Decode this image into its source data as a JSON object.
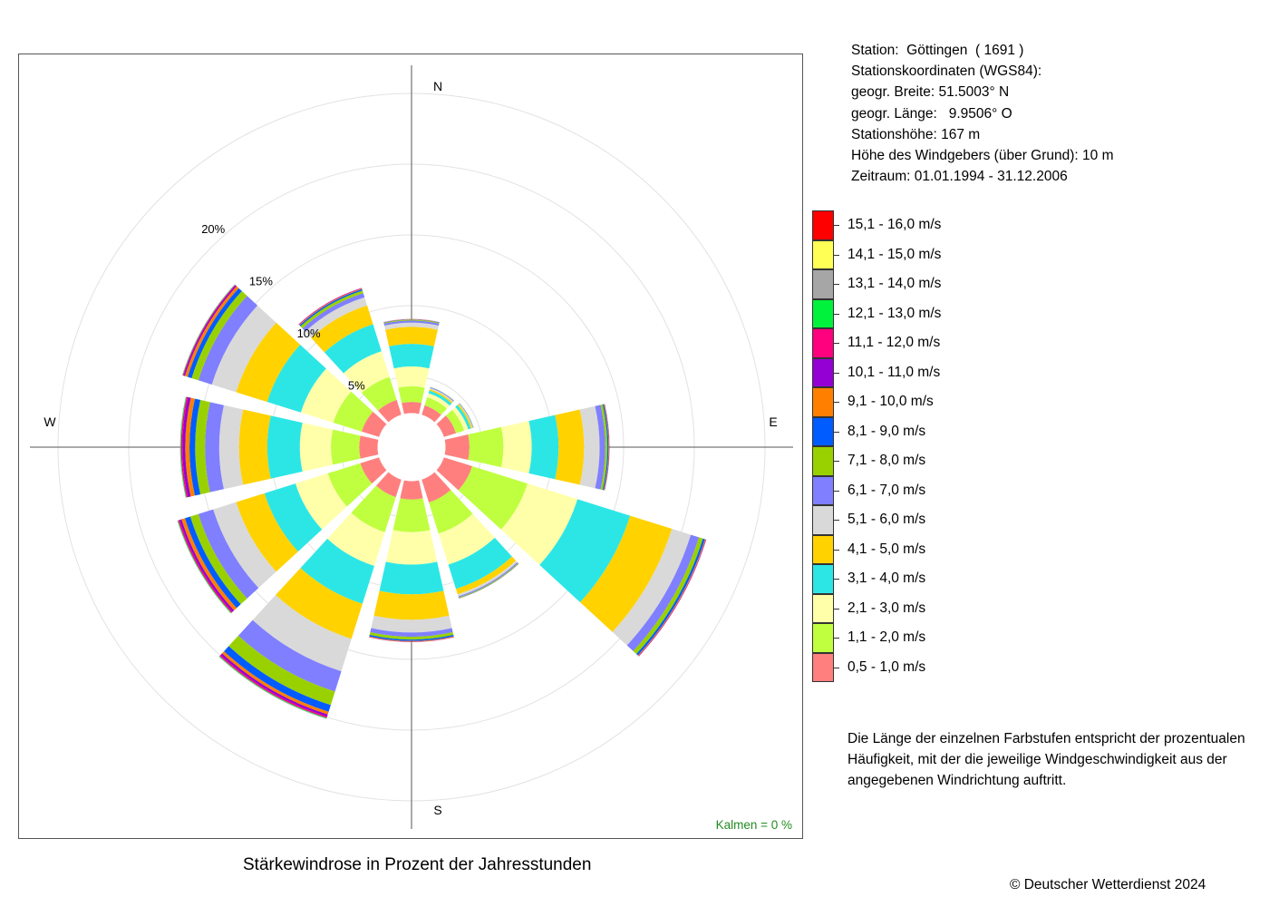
{
  "station": {
    "lines": [
      "Station:  Göttingen  ( 1691 )",
      "Stationskoordinaten (WGS84):",
      "geogr. Breite: 51.5003° N",
      "geogr. Länge:   9.9506° O",
      "Stationshöhe: 167 m",
      "Höhe des Windgebers (über Grund): 10 m",
      "Zeitraum: 01.01.1994 - 31.12.2006"
    ]
  },
  "note": "Die Länge der einzelnen Farbstufen entspricht der prozentualen Häufigkeit, mit der die jeweilige Windgeschwindigkeit aus der angegebenen Windrichtung auftritt.",
  "caption": "Stärkewindrose in Prozent der Jahresstunden",
  "copyright": "© Deutscher Wetterdienst  2024",
  "calm_label": "Kalmen  =  0 %",
  "chart_data": {
    "type": "windrose",
    "unit": "%",
    "title": "Stärkewindrose in Prozent der Jahresstunden",
    "compass": [
      "N",
      "E",
      "S",
      "W"
    ],
    "ring_labels": [
      "5%",
      "10%",
      "15%",
      "20%"
    ],
    "rings": [
      5,
      10,
      15,
      20,
      25
    ],
    "hub_radius": 2.4,
    "calm_percent": 0,
    "directions_deg": [
      0,
      30,
      60,
      90,
      120,
      150,
      180,
      210,
      240,
      270,
      300,
      330
    ],
    "classes": [
      {
        "label": "0,5 - 1,0 m/s",
        "color": "#FF7F7F"
      },
      {
        "label": "1,1 - 2,0 m/s",
        "color": "#BFFF3F"
      },
      {
        "label": "2,1 - 3,0 m/s",
        "color": "#FFFFAA"
      },
      {
        "label": "3,1 - 4,0 m/s",
        "color": "#2CE6E6"
      },
      {
        "label": "4,1 - 5,0 m/s",
        "color": "#FFD200"
      },
      {
        "label": "5,1 - 6,0 m/s",
        "color": "#D9D9D9"
      },
      {
        "label": "6,1 - 7,0 m/s",
        "color": "#7F7FFF"
      },
      {
        "label": "7,1 - 8,0 m/s",
        "color": "#99D100"
      },
      {
        "label": "8,1 - 9,0 m/s",
        "color": "#005CFF"
      },
      {
        "label": "9,1 - 10,0 m/s",
        "color": "#FF8000"
      },
      {
        "label": "10,1 - 11,0 m/s",
        "color": "#9400D3"
      },
      {
        "label": "11,1 - 12,0 m/s",
        "color": "#FF007F"
      },
      {
        "label": "12,1 - 13,0 m/s",
        "color": "#00F23C"
      },
      {
        "label": "13,1 - 14,0 m/s",
        "color": "#A6A6A6"
      },
      {
        "label": "14,1 - 15,0 m/s",
        "color": "#FFFF55"
      },
      {
        "label": "15,1 - 16,0 m/s",
        "color": "#FF0000"
      }
    ],
    "sectors": [
      {
        "dir": 0,
        "values": [
          0.8,
          1.1,
          1.4,
          1.6,
          1.2,
          0.3,
          0.15,
          0.05,
          0.03,
          0.02,
          0.01,
          0,
          0,
          0,
          0,
          0
        ]
      },
      {
        "dir": 30,
        "values": [
          0.7,
          0.6,
          0.3,
          0.2,
          0.1,
          0.08,
          0.05,
          0.02,
          0.01,
          0,
          0,
          0,
          0,
          0,
          0,
          0
        ]
      },
      {
        "dir": 60,
        "values": [
          0.9,
          0.6,
          0.3,
          0.2,
          0.1,
          0.05,
          0.03,
          0.02,
          0.01,
          0,
          0,
          0,
          0,
          0,
          0,
          0
        ]
      },
      {
        "dir": 90,
        "values": [
          1.7,
          2.4,
          2.0,
          1.9,
          1.8,
          1.1,
          0.4,
          0.15,
          0.08,
          0.04,
          0.02,
          0.01,
          0.01,
          0,
          0,
          0
        ]
      },
      {
        "dir": 120,
        "values": [
          2.1,
          4.1,
          3.7,
          3.9,
          3.1,
          1.4,
          0.6,
          0.3,
          0.15,
          0.05,
          0.03,
          0.02,
          0,
          0,
          0,
          0
        ]
      },
      {
        "dir": 150,
        "values": [
          1.7,
          2.3,
          2.3,
          1.8,
          0.4,
          0.15,
          0.08,
          0.05,
          0.02,
          0.01,
          0,
          0,
          0,
          0,
          0,
          0
        ]
      },
      {
        "dir": 180,
        "values": [
          1.3,
          2.3,
          2.3,
          2.1,
          1.8,
          0.9,
          0.3,
          0.2,
          0.1,
          0.05,
          0.02,
          0.01,
          0,
          0,
          0,
          0
        ]
      },
      {
        "dir": 210,
        "values": [
          1.3,
          2.6,
          2.5,
          2.8,
          2.6,
          2.4,
          1.5,
          1.0,
          0.5,
          0.2,
          0.15,
          0.1,
          0.05,
          0.03,
          0,
          0
        ]
      },
      {
        "dir": 240,
        "values": [
          1.4,
          2.4,
          2.4,
          2.3,
          2.1,
          1.7,
          1.1,
          0.6,
          0.4,
          0.25,
          0.15,
          0.1,
          0.05,
          0.02,
          0,
          0
        ]
      },
      {
        "dir": 270,
        "values": [
          1.3,
          2.0,
          2.2,
          2.3,
          2.0,
          1.4,
          1.0,
          0.7,
          0.4,
          0.3,
          0.2,
          0.1,
          0.05,
          0.02,
          0,
          0
        ]
      },
      {
        "dir": 300,
        "values": [
          1.3,
          2.1,
          2.4,
          2.5,
          2.3,
          1.8,
          1.0,
          0.5,
          0.3,
          0.2,
          0.1,
          0.05,
          0.03,
          0.02,
          0,
          0
        ]
      },
      {
        "dir": 330,
        "values": [
          1.1,
          1.7,
          1.9,
          2.0,
          1.4,
          0.6,
          0.3,
          0.2,
          0.1,
          0.05,
          0.03,
          0.02,
          0,
          0,
          0,
          0
        ]
      }
    ]
  }
}
